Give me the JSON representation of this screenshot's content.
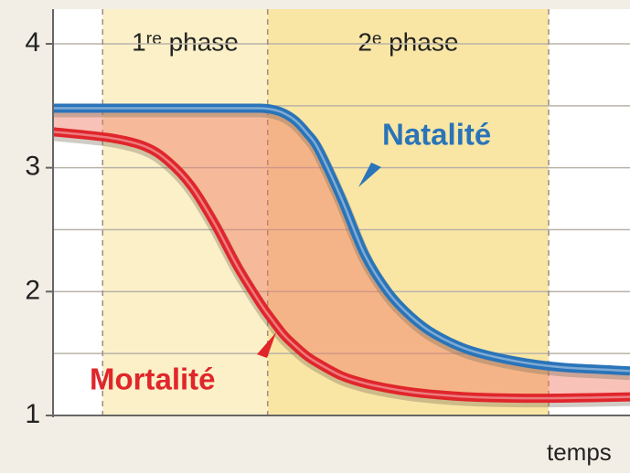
{
  "chart_data": {
    "type": "line",
    "x_label": "temps",
    "xlim": [
      0,
      100
    ],
    "ylim": [
      1,
      4.28
    ],
    "yticks": [
      1,
      2,
      3,
      4
    ],
    "yminor": [
      1.5,
      2.5,
      3.5
    ],
    "grid": true,
    "phases": [
      {
        "label": "1ʳᵉ phase",
        "start": 8.6,
        "end": 37.2,
        "color": "#fbf0c8"
      },
      {
        "label": "2ᵉ phase",
        "start": 37.2,
        "end": 85.9,
        "color": "#fae6a4"
      }
    ],
    "x": [
      0,
      10,
      16,
      20,
      24,
      28,
      32,
      36,
      38,
      40,
      42,
      44,
      46,
      50,
      54,
      58,
      62,
      66,
      72,
      80,
      88,
      100
    ],
    "series": [
      {
        "name": "Natalité",
        "color": "#2a74b9",
        "values": [
          3.48,
          3.48,
          3.48,
          3.48,
          3.48,
          3.48,
          3.48,
          3.48,
          3.47,
          3.44,
          3.38,
          3.28,
          3.15,
          2.75,
          2.3,
          2.0,
          1.8,
          1.66,
          1.53,
          1.44,
          1.39,
          1.36
        ]
      },
      {
        "name": "Mortalité",
        "color": "#e0262b",
        "values": [
          3.29,
          3.24,
          3.17,
          3.05,
          2.85,
          2.55,
          2.2,
          1.9,
          1.77,
          1.65,
          1.56,
          1.48,
          1.42,
          1.32,
          1.26,
          1.22,
          1.19,
          1.17,
          1.15,
          1.14,
          1.14,
          1.15
        ]
      }
    ]
  }
}
